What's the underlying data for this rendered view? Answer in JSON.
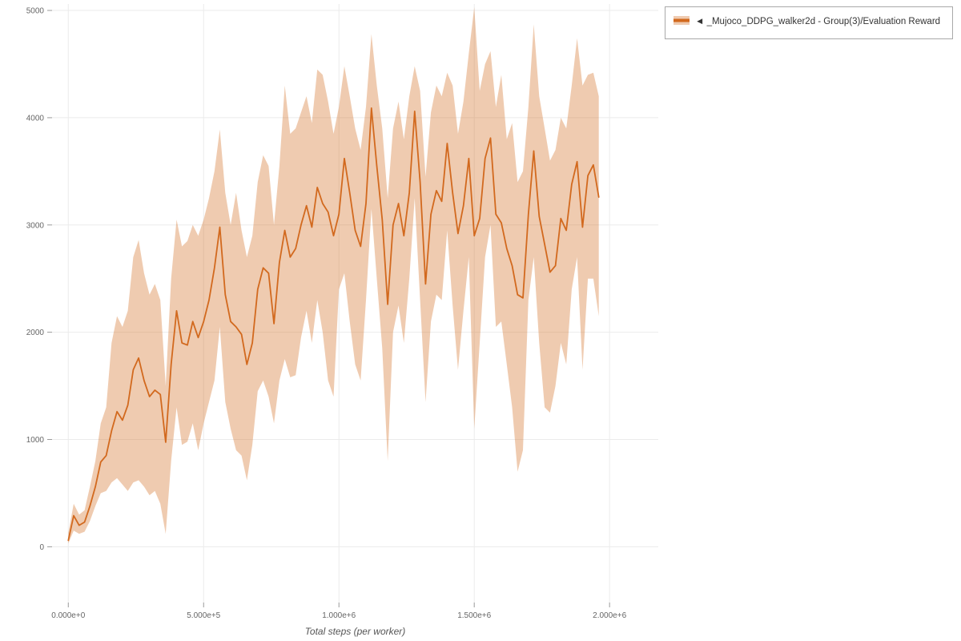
{
  "legend": {
    "series_label": "◄ _Mujoco_DDPG_walker2d - Group(3)/Evaluation Reward"
  },
  "chart_data": {
    "type": "line",
    "title": "",
    "xlabel": "Total steps (per worker)",
    "ylabel": "",
    "grid": true,
    "legend_position": "top-right",
    "line_color": "#d2691e",
    "band_color": "#d2691e",
    "band_opacity": 0.35,
    "xlim": [
      -60000,
      2180000
    ],
    "ylim": [
      -520,
      5060
    ],
    "x_start": 0,
    "x_step": 20000,
    "xticks": [
      {
        "value": 0,
        "label": "0.000e+0"
      },
      {
        "value": 500000,
        "label": "5.000e+5"
      },
      {
        "value": 1000000,
        "label": "1.000e+6"
      },
      {
        "value": 1500000,
        "label": "1.500e+6"
      },
      {
        "value": 2000000,
        "label": "2.000e+6"
      }
    ],
    "yticks": [
      {
        "value": 0,
        "label": "0"
      },
      {
        "value": 1000,
        "label": "1000"
      },
      {
        "value": 2000,
        "label": "2000"
      },
      {
        "value": 3000,
        "label": "3000"
      },
      {
        "value": 4000,
        "label": "4000"
      },
      {
        "value": 5000,
        "label": "5000"
      }
    ],
    "series": [
      {
        "name": "◄ _Mujoco_DDPG_walker2d - Group(3)/Evaluation Reward",
        "values": [
          60,
          290,
          200,
          230,
          380,
          560,
          790,
          850,
          1080,
          1260,
          1180,
          1320,
          1650,
          1760,
          1550,
          1400,
          1460,
          1420,
          975,
          1700,
          2200,
          1900,
          1880,
          2100,
          1950,
          2100,
          2300,
          2600,
          2980,
          2350,
          2100,
          2050,
          1980,
          1700,
          1900,
          2400,
          2600,
          2550,
          2080,
          2650,
          2950,
          2700,
          2780,
          3000,
          3180,
          2980,
          3350,
          3200,
          3120,
          2900,
          3100,
          3620,
          3300,
          2950,
          2800,
          3200,
          4090,
          3550,
          3050,
          2260,
          3000,
          3200,
          2900,
          3300,
          4060,
          3400,
          2450,
          3100,
          3320,
          3220,
          3760,
          3300,
          2920,
          3180,
          3620,
          2900,
          3060,
          3620,
          3810,
          3100,
          3020,
          2780,
          2620,
          2350,
          2320,
          3100,
          3690,
          3080,
          2820,
          2560,
          2620,
          3060,
          2950,
          3380,
          3590,
          2980,
          3460,
          3560,
          3260
        ],
        "band_upper": [
          130,
          400,
          300,
          340,
          560,
          800,
          1150,
          1300,
          1900,
          2150,
          2050,
          2200,
          2700,
          2860,
          2550,
          2350,
          2450,
          2300,
          1500,
          2500,
          3050,
          2800,
          2850,
          3000,
          2900,
          3050,
          3250,
          3500,
          3890,
          3300,
          3000,
          3300,
          2950,
          2700,
          2900,
          3400,
          3650,
          3550,
          3000,
          3550,
          4300,
          3850,
          3900,
          4050,
          4200,
          3950,
          4450,
          4400,
          4150,
          3850,
          4100,
          4480,
          4200,
          3900,
          3700,
          4100,
          4780,
          4300,
          3900,
          3250,
          3900,
          4150,
          3800,
          4200,
          4480,
          4250,
          3450,
          4050,
          4300,
          4200,
          4420,
          4300,
          3850,
          4150,
          4600,
          5030,
          4250,
          4500,
          4620,
          4100,
          4400,
          3800,
          3950,
          3400,
          3500,
          4100,
          4870,
          4200,
          3900,
          3600,
          3700,
          4000,
          3900,
          4300,
          4740,
          4300,
          4400,
          4420,
          4200
        ],
        "band_lower": [
          30,
          150,
          120,
          140,
          240,
          380,
          500,
          520,
          600,
          640,
          580,
          520,
          600,
          620,
          560,
          480,
          520,
          400,
          120,
          800,
          1300,
          950,
          980,
          1150,
          900,
          1150,
          1350,
          1550,
          2050,
          1350,
          1100,
          900,
          850,
          620,
          950,
          1450,
          1550,
          1400,
          1150,
          1550,
          1750,
          1580,
          1600,
          1950,
          2200,
          1900,
          2300,
          2000,
          1550,
          1400,
          2400,
          2550,
          2100,
          1700,
          1550,
          2300,
          3150,
          2500,
          1850,
          800,
          2000,
          2250,
          1900,
          2500,
          3250,
          2300,
          1350,
          2100,
          2350,
          2300,
          2950,
          2250,
          1650,
          2200,
          2700,
          1100,
          1900,
          2700,
          3000,
          2050,
          2100,
          1700,
          1300,
          700,
          900,
          2300,
          2700,
          1900,
          1300,
          1250,
          1500,
          1900,
          1700,
          2400,
          2700,
          1650,
          2500,
          2500,
          2150
        ]
      }
    ]
  }
}
